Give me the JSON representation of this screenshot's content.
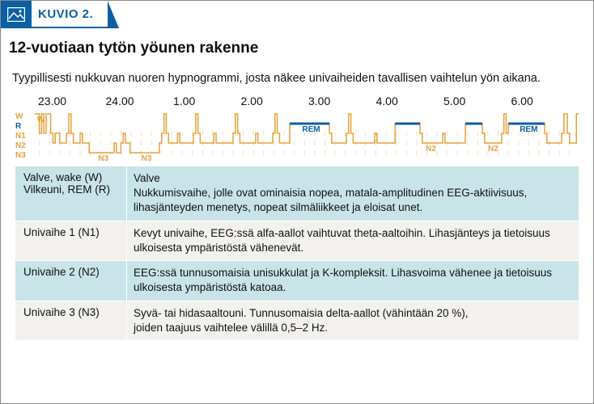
{
  "header": {
    "kuvio_label": "KUVIO 2."
  },
  "title": "12-vuotiaan tytön yöunen rakenne",
  "subtitle": "Tyypillisesti nukkuvan nuoren hypnogrammi, josta näkee univaiheiden tavallisen vaihtelun yön aikana.",
  "chart": {
    "type": "hypnogram-step",
    "time_labels": [
      "23.00",
      "24.00",
      "1.00",
      "2.00",
      "3.00",
      "4.00",
      "5.00",
      "6.00"
    ],
    "x_range_minutes": [
      0,
      480
    ],
    "stages_order": [
      "W",
      "R",
      "N1",
      "N2",
      "N3"
    ],
    "stage_y": {
      "W": 4,
      "R": 16,
      "N1": 28,
      "N2": 40,
      "N3": 52
    },
    "stage_colors": {
      "W": "#e6a23c",
      "R": "#0b5fa4",
      "N1": "#e6a23c",
      "N2": "#e6a23c",
      "N3": "#e6a23c"
    },
    "line_color": "#e6a23c",
    "line_width": 1.5,
    "rem_bar_color": "#0b5fa4",
    "rem_bar_height": 3,
    "tick_color": "#e6a23c",
    "background_color": "#ffffff",
    "segments": [
      {
        "t": 0,
        "stage": "W"
      },
      {
        "t": 4,
        "stage": "N1"
      },
      {
        "t": 6,
        "stage": "W"
      },
      {
        "t": 8,
        "stage": "N1"
      },
      {
        "t": 10,
        "stage": "W"
      },
      {
        "t": 14,
        "stage": "N1"
      },
      {
        "t": 16,
        "stage": "N2"
      },
      {
        "t": 18,
        "stage": "N1"
      },
      {
        "t": 22,
        "stage": "N2"
      },
      {
        "t": 28,
        "stage": "N1"
      },
      {
        "t": 30,
        "stage": "W"
      },
      {
        "t": 32,
        "stage": "N1"
      },
      {
        "t": 34,
        "stage": "N2"
      },
      {
        "t": 40,
        "stage": "N1"
      },
      {
        "t": 42,
        "stage": "N2"
      },
      {
        "t": 48,
        "stage": "N3"
      },
      {
        "t": 70,
        "stage": "N2"
      },
      {
        "t": 72,
        "stage": "N3"
      },
      {
        "t": 76,
        "stage": "N2"
      },
      {
        "t": 78,
        "stage": "N1"
      },
      {
        "t": 80,
        "stage": "N2"
      },
      {
        "t": 84,
        "stage": "N3"
      },
      {
        "t": 110,
        "stage": "N2"
      },
      {
        "t": 112,
        "stage": "N1"
      },
      {
        "t": 114,
        "stage": "W"
      },
      {
        "t": 116,
        "stage": "N1"
      },
      {
        "t": 118,
        "stage": "N2"
      },
      {
        "t": 126,
        "stage": "N1"
      },
      {
        "t": 128,
        "stage": "N2"
      },
      {
        "t": 140,
        "stage": "N1"
      },
      {
        "t": 142,
        "stage": "W"
      },
      {
        "t": 144,
        "stage": "N1"
      },
      {
        "t": 146,
        "stage": "N2"
      },
      {
        "t": 158,
        "stage": "N1"
      },
      {
        "t": 160,
        "stage": "N2"
      },
      {
        "t": 175,
        "stage": "N1"
      },
      {
        "t": 177,
        "stage": "W"
      },
      {
        "t": 179,
        "stage": "N1"
      },
      {
        "t": 181,
        "stage": "N2"
      },
      {
        "t": 195,
        "stage": "N1"
      },
      {
        "t": 197,
        "stage": "N2"
      },
      {
        "t": 210,
        "stage": "N1"
      },
      {
        "t": 212,
        "stage": "W"
      },
      {
        "t": 214,
        "stage": "N1"
      },
      {
        "t": 216,
        "stage": "N2"
      },
      {
        "t": 225,
        "stage": "R"
      },
      {
        "t": 260,
        "stage": "N1"
      },
      {
        "t": 262,
        "stage": "N2"
      },
      {
        "t": 275,
        "stage": "N1"
      },
      {
        "t": 277,
        "stage": "W"
      },
      {
        "t": 279,
        "stage": "N1"
      },
      {
        "t": 281,
        "stage": "N2"
      },
      {
        "t": 300,
        "stage": "N1"
      },
      {
        "t": 302,
        "stage": "N2"
      },
      {
        "t": 318,
        "stage": "R"
      },
      {
        "t": 340,
        "stage": "N1"
      },
      {
        "t": 342,
        "stage": "N2"
      },
      {
        "t": 360,
        "stage": "N1"
      },
      {
        "t": 362,
        "stage": "N2"
      },
      {
        "t": 380,
        "stage": "R"
      },
      {
        "t": 395,
        "stage": "N1"
      },
      {
        "t": 397,
        "stage": "N2"
      },
      {
        "t": 412,
        "stage": "N1"
      },
      {
        "t": 414,
        "stage": "W"
      },
      {
        "t": 416,
        "stage": "N1"
      },
      {
        "t": 418,
        "stage": "R"
      },
      {
        "t": 450,
        "stage": "N1"
      },
      {
        "t": 452,
        "stage": "N2"
      },
      {
        "t": 465,
        "stage": "N1"
      },
      {
        "t": 467,
        "stage": "W"
      },
      {
        "t": 470,
        "stage": "N1"
      },
      {
        "t": 472,
        "stage": "N2"
      },
      {
        "t": 478,
        "stage": "W"
      }
    ],
    "rem_bars": [
      {
        "start": 225,
        "end": 260
      },
      {
        "start": 318,
        "end": 340
      },
      {
        "start": 380,
        "end": 395
      },
      {
        "start": 418,
        "end": 450
      }
    ],
    "annotations": [
      {
        "text": "W",
        "x_min": 2,
        "stage": "W",
        "color": "#e6a23c"
      },
      {
        "text": "N3",
        "x_min": 56,
        "stage": "N3",
        "color": "#e6a23c"
      },
      {
        "text": "N3",
        "x_min": 94,
        "stage": "N3",
        "color": "#e6a23c"
      },
      {
        "text": "REM",
        "x_min": 236,
        "stage": "R",
        "color": "#0b5fa4"
      },
      {
        "text": "N2",
        "x_min": 345,
        "stage": "N2",
        "color": "#e6a23c"
      },
      {
        "text": "N2",
        "x_min": 400,
        "stage": "N2",
        "color": "#e6a23c"
      },
      {
        "text": "REM",
        "x_min": 428,
        "stage": "R",
        "color": "#0b5fa4"
      }
    ],
    "tick_rows": {
      "N1": true,
      "N2": true,
      "N3": true
    }
  },
  "table": {
    "row_alt_bg": "#c8e4e8",
    "row_plain_bg": "#f2f1ee",
    "rows": [
      {
        "left": "Valve, wake (W)\nVilkeuni, REM (R)",
        "right": "Valve\nNukkumisvaihe, jolle ovat ominaisia nopea, matala-amplitudinen EEG-aktiivisuus, lihasjänteyden menetys, nopeat silmäliikkeet ja eloisat unet.",
        "alt": true
      },
      {
        "left": "Univaihe 1 (N1)",
        "right": "Kevyt univaihe, EEG:ssä alfa-aallot vaihtuvat theta-aaltoihin. Lihasjänteys ja tietoisuus ulkoisesta ympäristöstä vähenevät.",
        "alt": false
      },
      {
        "left": "Univaihe 2 (N2)",
        "right": "EEG:ssä tunnusomaisia unisukkulat ja K-kompleksit. Lihasvoima vähenee ja tietoisuus ulkoisesta ympäristöstä katoaa.",
        "alt": true
      },
      {
        "left": "Univaihe 3 (N3)",
        "right": "Syvä- tai hidasaaltouni. Tunnusomaisia delta-aallot (vähintään 20 %),\njoiden taajuus vaihtelee välillä 0,5–2 Hz.",
        "alt": false
      }
    ]
  }
}
